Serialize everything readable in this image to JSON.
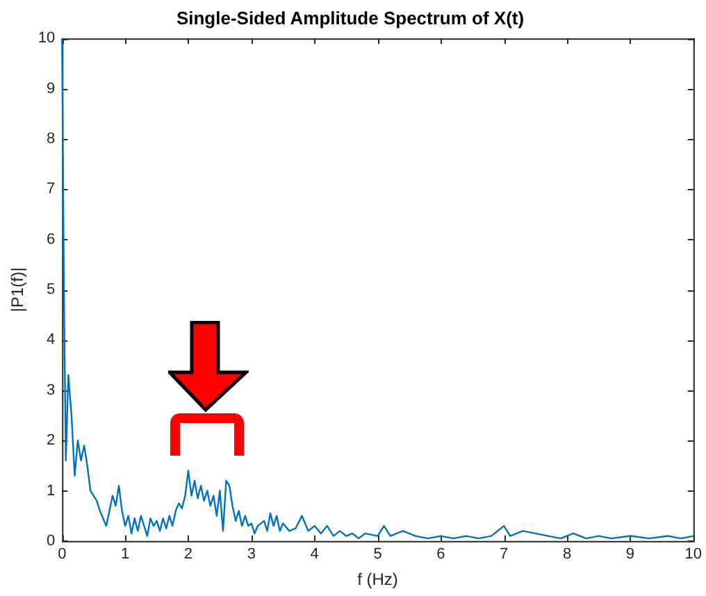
{
  "chart_data": {
    "type": "line",
    "title": "Single-Sided Amplitude Spectrum of X(t)",
    "xlabel": "f (Hz)",
    "ylabel": "|P1(f)|",
    "xlim": [
      0,
      10
    ],
    "ylim": [
      0,
      10
    ],
    "xticks": [
      0,
      1,
      2,
      3,
      4,
      5,
      6,
      7,
      8,
      9,
      10
    ],
    "yticks": [
      0,
      1,
      2,
      3,
      4,
      5,
      6,
      7,
      8,
      9,
      10
    ],
    "grid": false,
    "legend": false,
    "marker": "none",
    "line_style": "solid",
    "series": [
      {
        "color": "#0072bd",
        "x": [
          0,
          0.03,
          0.06,
          0.1,
          0.15,
          0.2,
          0.25,
          0.3,
          0.35,
          0.4,
          0.45,
          0.55,
          0.6,
          0.7,
          0.75,
          0.8,
          0.85,
          0.9,
          0.95,
          1.0,
          1.05,
          1.1,
          1.15,
          1.2,
          1.25,
          1.3,
          1.35,
          1.4,
          1.45,
          1.5,
          1.55,
          1.6,
          1.65,
          1.7,
          1.75,
          1.8,
          1.85,
          1.9,
          1.95,
          2.0,
          2.05,
          2.1,
          2.15,
          2.2,
          2.25,
          2.3,
          2.35,
          2.4,
          2.45,
          2.5,
          2.55,
          2.6,
          2.65,
          2.7,
          2.75,
          2.8,
          2.85,
          2.9,
          2.95,
          3.0,
          3.05,
          3.1,
          3.2,
          3.25,
          3.3,
          3.35,
          3.4,
          3.45,
          3.5,
          3.6,
          3.7,
          3.8,
          3.9,
          4.0,
          4.1,
          4.2,
          4.3,
          4.4,
          4.5,
          4.6,
          4.7,
          4.8,
          5.0,
          5.1,
          5.2,
          5.4,
          5.6,
          5.8,
          6.0,
          6.2,
          6.4,
          6.6,
          6.8,
          7.0,
          7.1,
          7.3,
          7.5,
          7.7,
          7.9,
          8.1,
          8.3,
          8.5,
          8.7,
          9.0,
          9.3,
          9.6,
          9.8,
          10
        ],
        "values": [
          10,
          5,
          1.6,
          3.3,
          2.5,
          1.3,
          2.0,
          1.6,
          1.9,
          1.5,
          1.0,
          0.8,
          0.6,
          0.3,
          0.6,
          0.9,
          0.7,
          1.1,
          0.6,
          0.3,
          0.5,
          0.15,
          0.45,
          0.2,
          0.5,
          0.3,
          0.1,
          0.45,
          0.3,
          0.4,
          0.2,
          0.45,
          0.25,
          0.5,
          0.3,
          0.6,
          0.75,
          0.65,
          0.9,
          1.4,
          0.9,
          1.2,
          0.85,
          1.1,
          0.8,
          1.0,
          0.7,
          0.9,
          0.5,
          1.0,
          0.2,
          1.2,
          1.1,
          0.7,
          0.4,
          0.6,
          0.3,
          0.5,
          0.3,
          0.35,
          0.15,
          0.3,
          0.4,
          0.2,
          0.55,
          0.3,
          0.5,
          0.2,
          0.35,
          0.2,
          0.25,
          0.5,
          0.2,
          0.3,
          0.15,
          0.3,
          0.1,
          0.2,
          0.1,
          0.15,
          0.05,
          0.15,
          0.1,
          0.3,
          0.1,
          0.2,
          0.1,
          0.05,
          0.1,
          0.05,
          0.1,
          0.05,
          0.1,
          0.3,
          0.1,
          0.2,
          0.15,
          0.1,
          0.05,
          0.15,
          0.05,
          0.1,
          0.05,
          0.1,
          0.05,
          0.1,
          0.05,
          0.1
        ]
      }
    ]
  }
}
